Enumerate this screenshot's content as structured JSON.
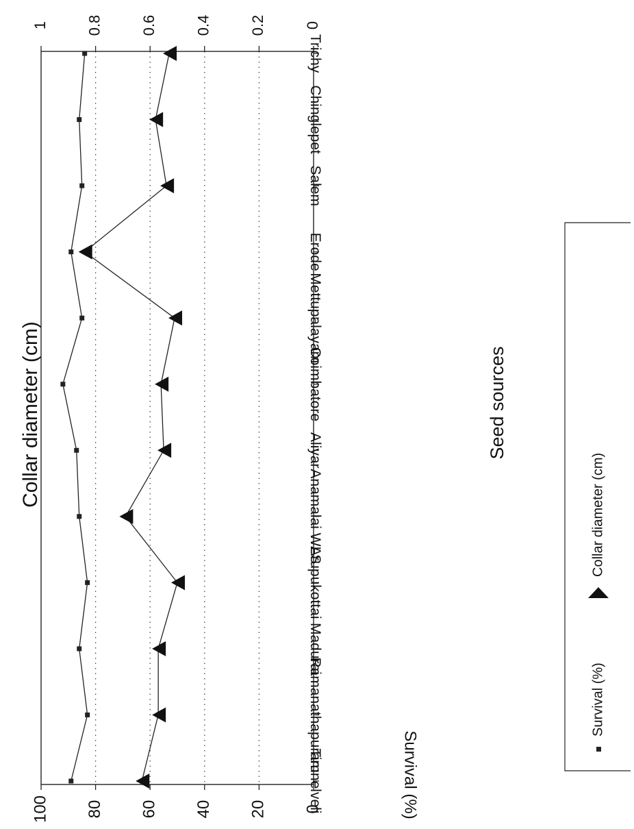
{
  "chart_data": {
    "type": "line",
    "orientation": "rotated-90-clockwise",
    "xlabel": "Seed sources",
    "categories": [
      "Tirunelveli",
      "Ramanathapuram",
      "Madurai",
      "Arupukottai",
      "Anamalai WLS",
      "Aliyar",
      "Coimbatore",
      "Mettupalayam",
      "Erode",
      "Salem",
      "Chinglepet",
      "Trichy"
    ],
    "y_left": {
      "label": "Survival (%)",
      "ylim": [
        0,
        100
      ],
      "ticks": [
        "0",
        "20",
        "40",
        "60",
        "80",
        "100"
      ]
    },
    "y_right": {
      "label": "Collar diameter (cm)",
      "ylim": [
        0,
        1
      ],
      "ticks": [
        "0",
        "0.2",
        "0.4",
        "0.6",
        "0.8",
        "1"
      ]
    },
    "grid": "dotted horizontal at 0.2, 0.4, 0.6 and 0.8 (cm)",
    "legend_position": "bottom",
    "series": [
      {
        "name": "Survival (%)",
        "axis": "left",
        "marker": "square",
        "values": [
          89,
          83,
          86,
          83,
          86,
          87,
          92,
          85,
          89,
          85,
          86,
          84
        ]
      },
      {
        "name": "Collar diameter (cm)",
        "axis": "right",
        "marker": "triangle",
        "values": [
          0.63,
          0.57,
          0.57,
          0.5,
          0.69,
          0.55,
          0.56,
          0.51,
          0.84,
          0.54,
          0.58,
          0.53
        ]
      }
    ],
    "legend": [
      {
        "label": "Survival (%)",
        "marker": "square"
      },
      {
        "label": "Collar diameter (cm)",
        "marker": "triangle"
      }
    ],
    "colors": {
      "line": "#222222",
      "grid": "#444444",
      "frame": "#222222"
    }
  }
}
